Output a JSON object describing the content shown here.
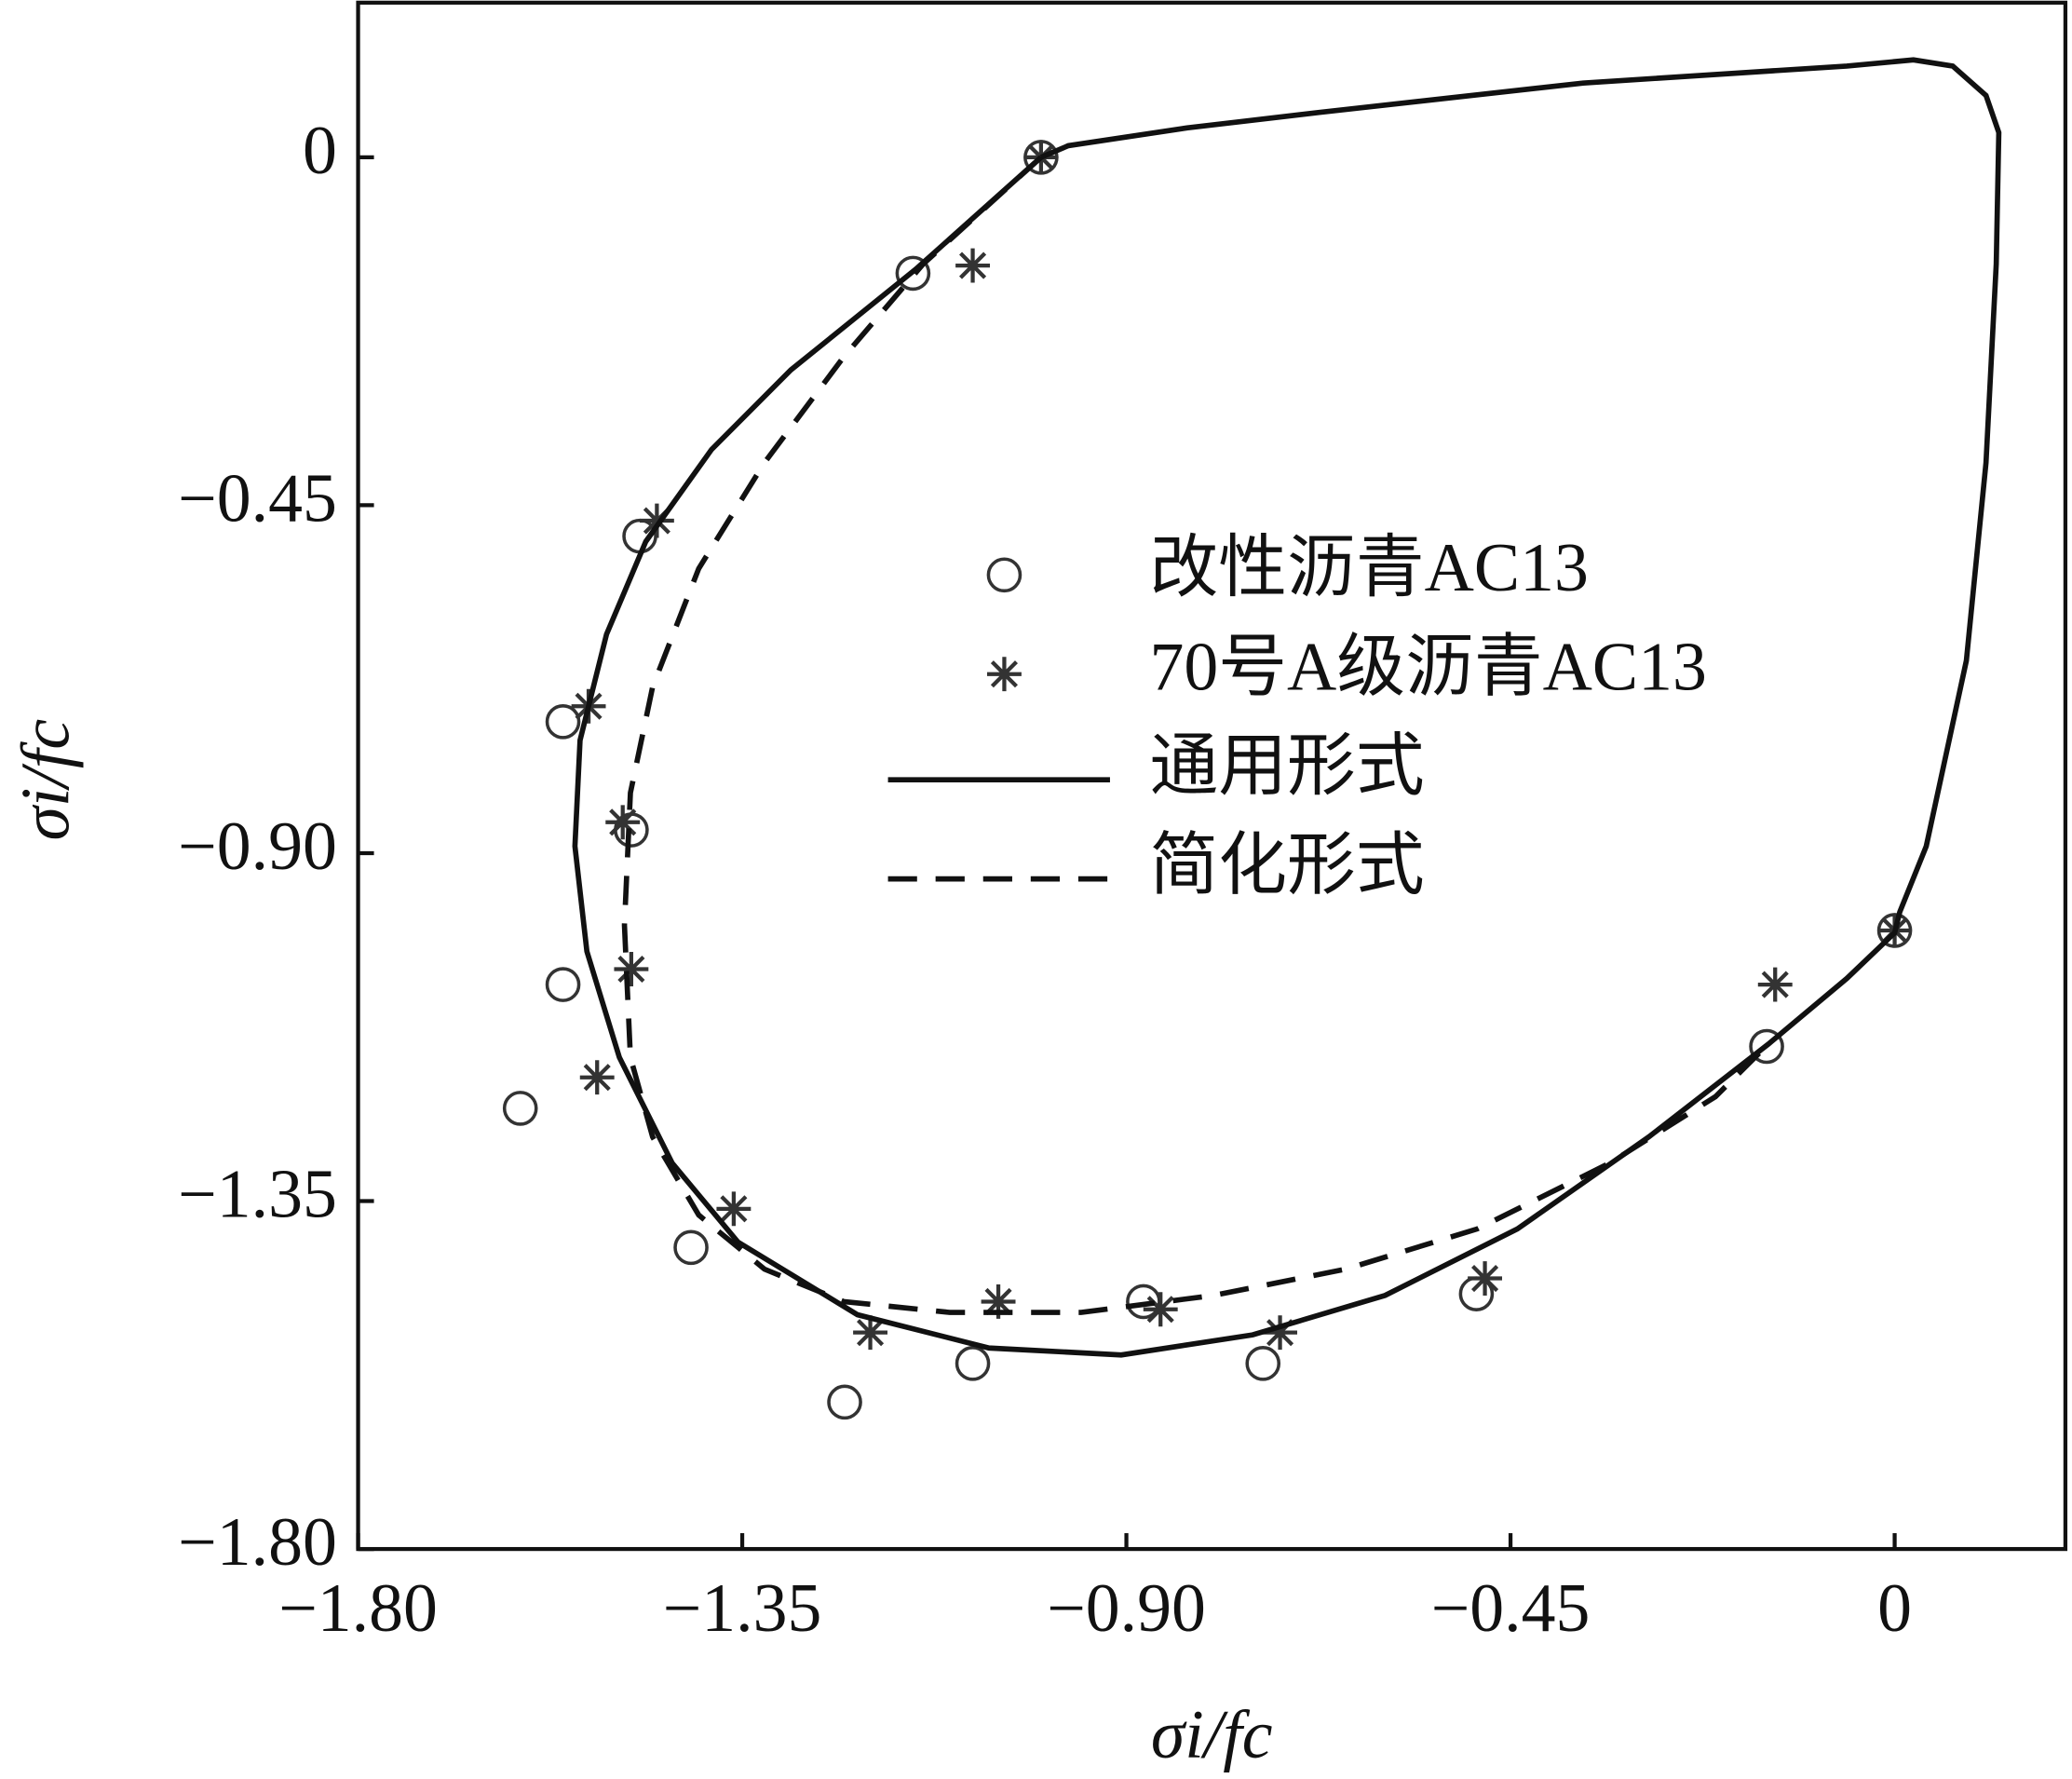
{
  "chart_data": {
    "type": "scatter",
    "xlabel": "σi/fc",
    "ylabel": "σi/fc",
    "xlim": [
      -1.8,
      0.2
    ],
    "ylim": [
      -1.8,
      0.2
    ],
    "xticks": [
      {
        "value": -1.8,
        "label": "−1.80"
      },
      {
        "value": -1.35,
        "label": "−1.35"
      },
      {
        "value": -0.9,
        "label": "−0.90"
      },
      {
        "value": -0.45,
        "label": "−0.45"
      },
      0
    ],
    "yticks": [
      {
        "value": -1.8,
        "label": "−1.80"
      },
      {
        "value": -1.35,
        "label": "−1.35"
      },
      {
        "value": -0.9,
        "label": "−0.90"
      },
      {
        "value": -0.45,
        "label": "−0.45"
      },
      0
    ],
    "legend": "center",
    "series": [
      {
        "name": "改性沥青AC13",
        "kind": "points",
        "marker": "circle",
        "color": "#333333",
        "x": [
          -1.0,
          -1.15,
          -1.47,
          -1.56,
          -1.48,
          -1.56,
          -1.61,
          -1.41,
          -1.23,
          -1.08,
          -0.88,
          -0.74,
          -0.49,
          -0.15,
          0
        ],
        "values": [
          0,
          -0.15,
          -0.49,
          -0.73,
          -0.87,
          -1.07,
          -1.23,
          -1.41,
          -1.61,
          -1.56,
          -1.48,
          -1.56,
          -1.47,
          -1.15,
          -1.0
        ]
      },
      {
        "name": "70号A级沥青AC13",
        "kind": "points",
        "marker": "star",
        "color": "#333333",
        "x": [
          -1.0,
          -1.08,
          -1.45,
          -1.53,
          -1.49,
          -1.48,
          -1.52,
          -1.36,
          -1.2,
          -1.05,
          -0.86,
          -0.72,
          -0.48,
          -0.14,
          0
        ],
        "values": [
          0,
          -0.14,
          -0.47,
          -0.71,
          -0.86,
          -1.05,
          -1.19,
          -1.36,
          -1.52,
          -1.48,
          -1.49,
          -1.52,
          -1.45,
          -1.07,
          -1.0
        ]
      },
      {
        "name": "通用形式",
        "kind": "line",
        "dashed": false,
        "color": "#111111",
        "x": [
          -1.0,
          -0.968,
          -0.829,
          -0.674,
          -0.365,
          -0.056,
          0.022,
          0.068,
          0.107,
          0.122,
          0.119,
          0.107,
          0.084,
          0.037,
          0.006,
          0,
          -0.056,
          -0.148,
          -0.288,
          -0.442,
          -0.597,
          -0.752,
          -0.906,
          -1.061,
          -1.215,
          -1.355,
          -1.432,
          -1.494,
          -1.532,
          -1.546,
          -1.54,
          -1.509,
          -1.463,
          -1.386,
          -1.293,
          -1.147,
          -1.0
        ],
        "values": [
          0,
          0.015,
          0.038,
          0.058,
          0.096,
          0.118,
          0.126,
          0.118,
          0.08,
          0.032,
          -0.138,
          -0.395,
          -0.651,
          -0.891,
          -0.976,
          -1.003,
          -1.062,
          -1.147,
          -1.267,
          -1.386,
          -1.472,
          -1.523,
          -1.549,
          -1.54,
          -1.497,
          -1.403,
          -1.301,
          -1.164,
          -1.027,
          -0.891,
          -0.754,
          -0.617,
          -0.497,
          -0.378,
          -0.275,
          -0.145,
          0
        ]
      },
      {
        "name": "简化形式",
        "kind": "line",
        "dashed": true,
        "color": "#111111",
        "x": [
          -1.0,
          -1.138,
          -1.231,
          -1.324,
          -1.401,
          -1.455,
          -1.481,
          -1.488,
          -1.481,
          -1.455,
          -1.401,
          -1.324,
          -1.231,
          -1.107,
          -0.953,
          -0.798,
          -0.643,
          -0.489,
          -0.334,
          -0.21,
          -0.148
        ],
        "values": [
          0,
          -0.138,
          -0.258,
          -0.395,
          -0.532,
          -0.685,
          -0.822,
          -0.993,
          -1.164,
          -1.267,
          -1.368,
          -1.438,
          -1.48,
          -1.494,
          -1.494,
          -1.472,
          -1.438,
          -1.386,
          -1.301,
          -1.215,
          -1.147
        ]
      }
    ]
  }
}
